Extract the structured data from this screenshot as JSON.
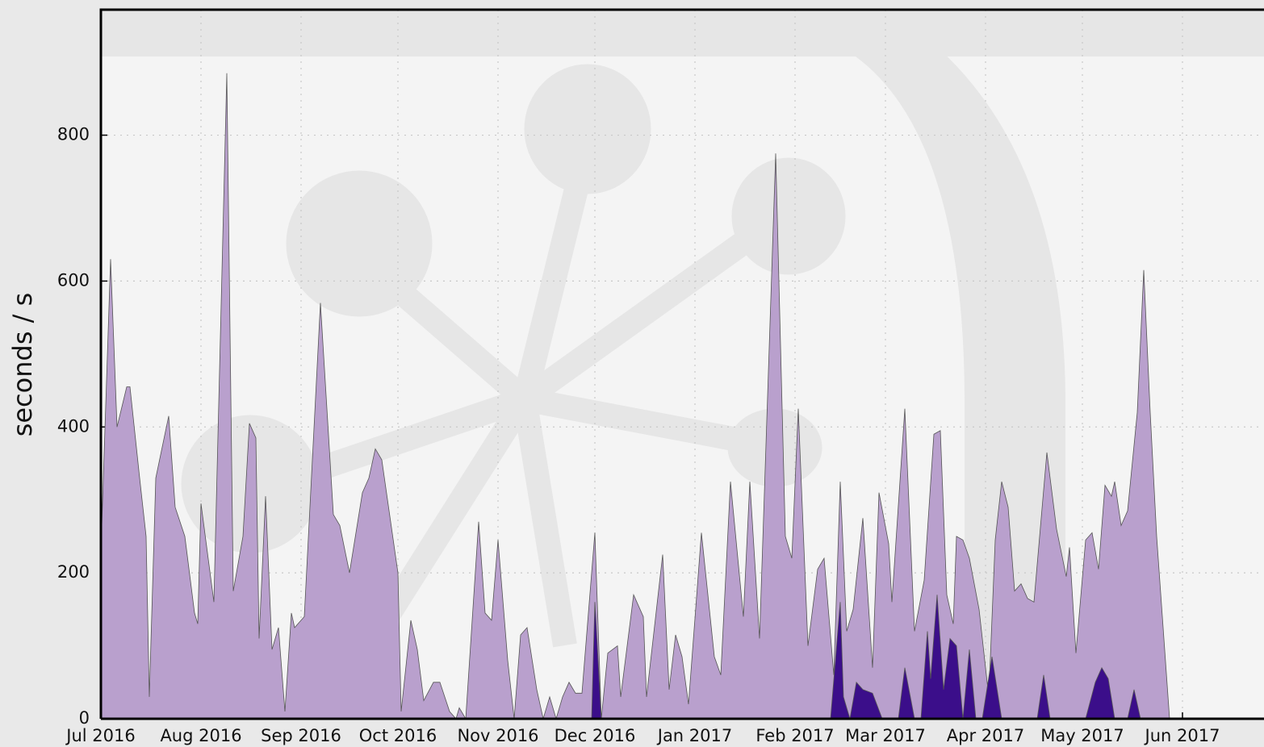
{
  "chart_data": {
    "type": "area",
    "ylabel": "seconds / s",
    "xlim": [
      0,
      360
    ],
    "ylim": [
      0,
      972
    ],
    "xticks": [
      {
        "value": 0,
        "label": "Jul 2016"
      },
      {
        "value": 31,
        "label": "Aug 2016"
      },
      {
        "value": 62,
        "label": "Sep 2016"
      },
      {
        "value": 92,
        "label": "Oct 2016"
      },
      {
        "value": 123,
        "label": "Nov 2016"
      },
      {
        "value": 153,
        "label": "Dec 2016"
      },
      {
        "value": 184,
        "label": "Jan 2017"
      },
      {
        "value": 215,
        "label": "Feb 2017"
      },
      {
        "value": 243,
        "label": "Mar 2017"
      },
      {
        "value": 274,
        "label": "Apr 2017"
      },
      {
        "value": 304,
        "label": "May 2017"
      },
      {
        "value": 335,
        "label": "Jun 2017"
      }
    ],
    "yticks": [
      0,
      200,
      400,
      600,
      800
    ],
    "grid": true,
    "series": [
      {
        "color": "#b9a0cd",
        "x": [
          0,
          3,
          5,
          8,
          9,
          12,
          14,
          15,
          17,
          21,
          23,
          26,
          29,
          30,
          31,
          35,
          39,
          41,
          44,
          46,
          48,
          49,
          51,
          53,
          55,
          57,
          59,
          60,
          63,
          68,
          72,
          74,
          77,
          81,
          83,
          85,
          87,
          92,
          93,
          96,
          98,
          100,
          103,
          105,
          108,
          110,
          111,
          113,
          117,
          119,
          121,
          123,
          126,
          128,
          130,
          132,
          135,
          137,
          139,
          141,
          143,
          145,
          147,
          149,
          153,
          155,
          157,
          160,
          161,
          165,
          168,
          169,
          174,
          176,
          178,
          180,
          182,
          186,
          190,
          192,
          195,
          199,
          201,
          204,
          209,
          212,
          214,
          216,
          219,
          222,
          224,
          227,
          229,
          231,
          233,
          236,
          239,
          241,
          244,
          245,
          249,
          252,
          255,
          258,
          260,
          262,
          264,
          265,
          267,
          269,
          272,
          275,
          277,
          279,
          281,
          283,
          285,
          287,
          289,
          293,
          296,
          299,
          300,
          302,
          305,
          307,
          309,
          311,
          313,
          314,
          316,
          318,
          321,
          323,
          325,
          327,
          331
        ],
        "values": [
          230,
          630,
          400,
          455,
          455,
          330,
          250,
          30,
          330,
          415,
          290,
          250,
          145,
          130,
          295,
          160,
          885,
          175,
          250,
          405,
          385,
          110,
          305,
          95,
          125,
          10,
          145,
          125,
          140,
          570,
          280,
          265,
          200,
          310,
          330,
          370,
          355,
          200,
          10,
          135,
          95,
          25,
          50,
          50,
          10,
          0,
          15,
          0,
          270,
          145,
          135,
          245,
          80,
          0,
          115,
          125,
          40,
          0,
          30,
          0,
          30,
          50,
          35,
          35,
          255,
          0,
          90,
          100,
          30,
          170,
          140,
          30,
          225,
          40,
          115,
          85,
          20,
          255,
          85,
          60,
          325,
          140,
          325,
          110,
          775,
          250,
          220,
          425,
          100,
          205,
          220,
          60,
          325,
          120,
          150,
          275,
          70,
          310,
          240,
          160,
          425,
          120,
          190,
          390,
          395,
          170,
          130,
          250,
          245,
          220,
          150,
          30,
          245,
          325,
          290,
          175,
          185,
          165,
          160,
          365,
          260,
          195,
          235,
          90,
          245,
          255,
          205,
          320,
          305,
          325,
          265,
          285,
          420,
          615,
          420,
          250,
          0
        ]
      },
      {
        "color": "#3b0e8a",
        "x": [
          152,
          153,
          155,
          226,
          229,
          230,
          232,
          234,
          236,
          239,
          242,
          247,
          249,
          252,
          254,
          256,
          257,
          259,
          261,
          263,
          265,
          267,
          269,
          271,
          273,
          276,
          279,
          290,
          292,
          294,
          305,
          308,
          310,
          312,
          314,
          318,
          320,
          322
        ],
        "values": [
          0,
          160,
          0,
          0,
          160,
          30,
          0,
          50,
          40,
          35,
          0,
          0,
          70,
          0,
          0,
          120,
          55,
          170,
          40,
          110,
          100,
          0,
          95,
          0,
          0,
          85,
          0,
          0,
          60,
          0,
          0,
          50,
          70,
          55,
          0,
          0,
          40,
          0
        ]
      }
    ]
  }
}
